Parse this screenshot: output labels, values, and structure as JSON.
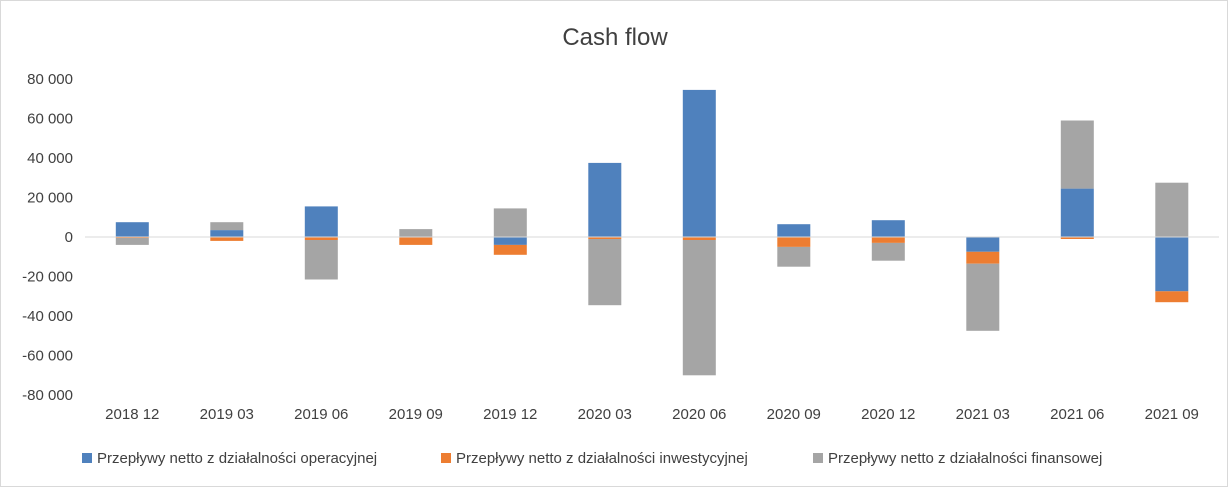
{
  "chart_data": {
    "type": "bar",
    "stacked": true,
    "title": "Cash flow",
    "categories": [
      "2018 12",
      "2019 03",
      "2019 06",
      "2019 09",
      "2019 12",
      "2020 03",
      "2020 06",
      "2020 09",
      "2020 12",
      "2021 03",
      "2021 06",
      "2021 09"
    ],
    "ylim": [
      -80000,
      80000
    ],
    "yticks": [
      80000,
      60000,
      40000,
      20000,
      0,
      -20000,
      -40000,
      -60000,
      -80000
    ],
    "ytick_labels": [
      "80 000",
      "60 000",
      "40 000",
      "20 000",
      "0",
      "-20 000",
      "-40 000",
      "-60 000",
      "-80 000"
    ],
    "grid": false,
    "legend_position": "bottom",
    "series": [
      {
        "name": "Przepływy netto z działalności operacyjnej",
        "color": "#4f81bd",
        "values": [
          7500,
          3500,
          15500,
          0,
          -4000,
          37500,
          74500,
          6500,
          8500,
          -7500,
          24500,
          -27500
        ]
      },
      {
        "name": "Przepływy netto z działalności inwestycyjnej",
        "color": "#ed7d31",
        "values": [
          -500,
          -2000,
          -1500,
          -4000,
          -5000,
          -1000,
          -1500,
          -5000,
          -3000,
          -6000,
          -1000,
          -5500
        ]
      },
      {
        "name": "Przepływy netto z działalności finansowej",
        "color": "#a5a5a5",
        "values": [
          -3500,
          4000,
          -20000,
          4000,
          14500,
          -33500,
          -68500,
          -10000,
          -9000,
          -34000,
          34500,
          27500
        ]
      }
    ]
  }
}
